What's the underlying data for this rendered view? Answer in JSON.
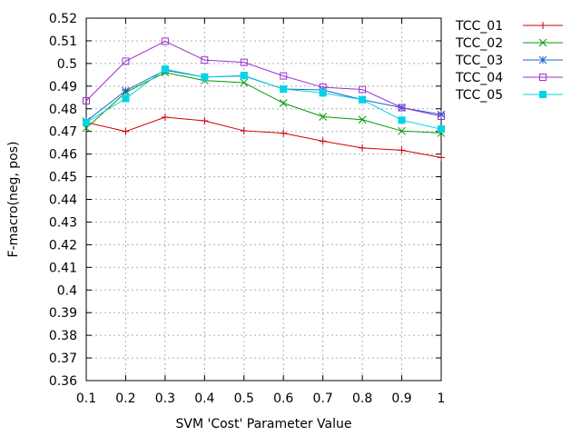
{
  "chart_data": {
    "type": "line",
    "title": "",
    "xlabel": "SVM 'Cost' Parameter Value",
    "ylabel": "F-macro(neg, pos)",
    "x": [
      0.1,
      0.2,
      0.3,
      0.4,
      0.5,
      0.6,
      0.7,
      0.8,
      0.9,
      1
    ],
    "xlim": [
      0.1,
      1
    ],
    "ylim": [
      0.36,
      0.52
    ],
    "xticks": [
      "0.1",
      "0.2",
      "0.3",
      "0.4",
      "0.5",
      "0.6",
      "0.7",
      "0.8",
      "0.9",
      "1"
    ],
    "yticks": [
      "0.36",
      "0.37",
      "0.38",
      "0.39",
      "0.4",
      "0.41",
      "0.42",
      "0.43",
      "0.44",
      "0.45",
      "0.46",
      "0.47",
      "0.48",
      "0.49",
      "0.5",
      "0.51",
      "0.52"
    ],
    "grid": true,
    "legend_position": "outside-right",
    "series": [
      {
        "name": "TCC_01",
        "color": "#cc0000",
        "marker": "plus",
        "values": [
          0.474,
          0.47,
          0.4763,
          0.4747,
          0.4703,
          0.4692,
          0.4657,
          0.4627,
          0.4617,
          0.4585
        ]
      },
      {
        "name": "TCC_02",
        "color": "#009900",
        "marker": "cross",
        "values": [
          0.4715,
          0.4872,
          0.496,
          0.4925,
          0.4915,
          0.4825,
          0.4765,
          0.4752,
          0.4702,
          0.4693
        ]
      },
      {
        "name": "TCC_03",
        "color": "#1a66cc",
        "marker": "star",
        "values": [
          0.4745,
          0.488,
          0.497,
          0.494,
          0.4945,
          0.4887,
          0.4883,
          0.484,
          0.4805,
          0.4775
        ]
      },
      {
        "name": "TCC_04",
        "color": "#9933cc",
        "marker": "square-open",
        "values": [
          0.4835,
          0.501,
          0.5098,
          0.5015,
          0.5005,
          0.4945,
          0.4895,
          0.4885,
          0.4805,
          0.4767
        ]
      },
      {
        "name": "TCC_05",
        "color": "#00d4e6",
        "marker": "square-filled",
        "values": [
          0.474,
          0.4845,
          0.4975,
          0.494,
          0.4947,
          0.4887,
          0.487,
          0.484,
          0.475,
          0.471
        ]
      }
    ]
  }
}
